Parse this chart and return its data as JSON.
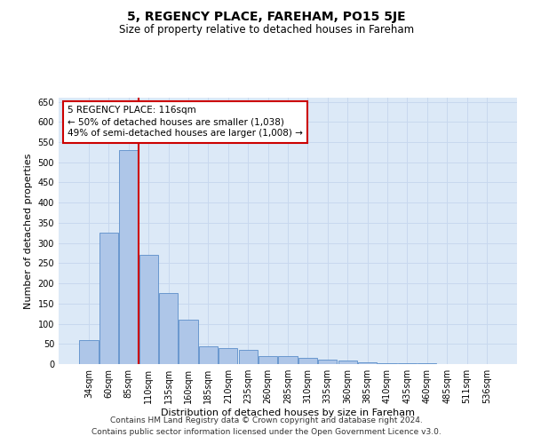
{
  "title": "5, REGENCY PLACE, FAREHAM, PO15 5JE",
  "subtitle": "Size of property relative to detached houses in Fareham",
  "xlabel": "Distribution of detached houses by size in Fareham",
  "ylabel": "Number of detached properties",
  "categories": [
    "34sqm",
    "60sqm",
    "85sqm",
    "110sqm",
    "135sqm",
    "160sqm",
    "185sqm",
    "210sqm",
    "235sqm",
    "260sqm",
    "285sqm",
    "310sqm",
    "335sqm",
    "360sqm",
    "385sqm",
    "410sqm",
    "435sqm",
    "460sqm",
    "485sqm",
    "511sqm",
    "536sqm"
  ],
  "values": [
    60,
    325,
    530,
    270,
    175,
    110,
    45,
    40,
    35,
    20,
    20,
    15,
    10,
    8,
    5,
    3,
    2,
    2,
    1,
    1,
    1
  ],
  "bar_color": "#aec6e8",
  "bar_edge_color": "#5b8ec9",
  "grid_color": "#c8d8ee",
  "background_color": "#dce9f7",
  "vline_x_index": 2.5,
  "vline_color": "#cc0000",
  "annotation_text": "5 REGENCY PLACE: 116sqm\n← 50% of detached houses are smaller (1,038)\n49% of semi-detached houses are larger (1,008) →",
  "annotation_box_color": "#ffffff",
  "annotation_box_edge_color": "#cc0000",
  "footer_line1": "Contains HM Land Registry data © Crown copyright and database right 2024.",
  "footer_line2": "Contains public sector information licensed under the Open Government Licence v3.0.",
  "ylim": [
    0,
    660
  ],
  "yticks": [
    0,
    50,
    100,
    150,
    200,
    250,
    300,
    350,
    400,
    450,
    500,
    550,
    600,
    650
  ],
  "title_fontsize": 10,
  "subtitle_fontsize": 8.5,
  "xlabel_fontsize": 8,
  "ylabel_fontsize": 8,
  "tick_fontsize": 7,
  "annotation_fontsize": 7.5,
  "footer_fontsize": 6.5
}
